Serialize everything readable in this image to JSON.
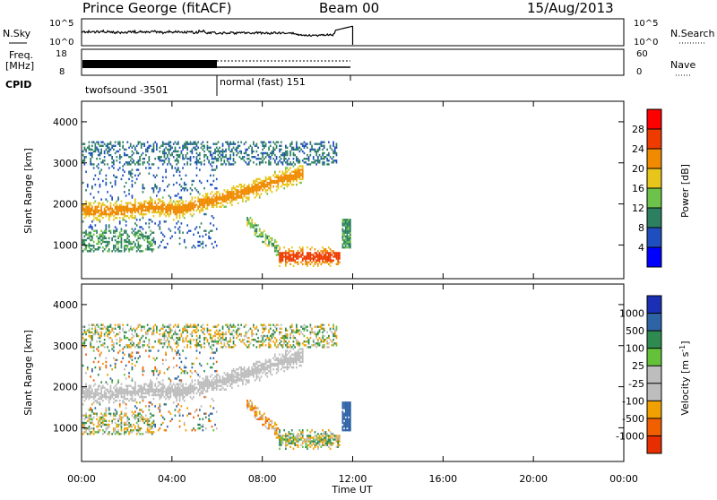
{
  "header": {
    "station": "Prince George (fitACF)",
    "beam": "Beam 00",
    "date": "15/Aug/2013"
  },
  "noise_panel": {
    "left_label": "N.Sky",
    "right_label": "N.Search",
    "left_ticks": [
      "10^5",
      "10^0"
    ],
    "right_ticks": [
      "10^5",
      "10^0"
    ]
  },
  "freq_panel": {
    "left_label_1": "Freq.",
    "left_label_2": "[MHz]",
    "left_ticks": [
      "18",
      "8"
    ],
    "right_label": "Nave",
    "right_ticks": [
      "60",
      "0"
    ]
  },
  "cpid": {
    "label": "CPID",
    "segments": [
      {
        "start_hour": 0,
        "end_hour": 6,
        "text": "twofsound -3501"
      },
      {
        "start_hour": 6,
        "end_hour": 12,
        "text": "normal (fast) 151"
      }
    ]
  },
  "chart_data": [
    {
      "type": "heatmap",
      "panel": "power",
      "ylabel": "Slant Range [km]",
      "yticks": [
        "1000",
        "2000",
        "3000",
        "4000"
      ],
      "ylim": [
        180,
        4500
      ],
      "xlim": [
        0,
        24
      ],
      "colorbar_label": "Power [dB]",
      "colorbar_ticks": [
        "4",
        "8",
        "12",
        "16",
        "20",
        "24",
        "28"
      ],
      "colors": [
        "#0000ff",
        "#1f4fbf",
        "#2d7f62",
        "#6cc24a",
        "#e7c51a",
        "#f08a00",
        "#ee3c00",
        "#ff0000"
      ]
    },
    {
      "type": "heatmap",
      "panel": "velocity",
      "ylabel": "Slant Range [km]",
      "yticks": [
        "1000",
        "2000",
        "3000",
        "4000"
      ],
      "ylim": [
        180,
        4500
      ],
      "xlim": [
        0,
        24
      ],
      "colorbar_label": "Velocity [m s",
      "colorbar_label_sup": "-1",
      "colorbar_label_end": "]",
      "colorbar_ticks": [
        "1000",
        "500",
        "100",
        "25",
        "-25",
        "-100",
        "-500",
        "-1000"
      ],
      "colors": [
        "#1a2fb4",
        "#2e63a6",
        "#2f8a52",
        "#63c13a",
        "#bdbdbd",
        "#bdbdbd",
        "#f0a000",
        "#f06000",
        "#e62e00"
      ]
    }
  ],
  "xaxis": {
    "label": "Time UT",
    "ticks": [
      "00:00",
      "04:00",
      "08:00",
      "12:00",
      "16:00",
      "20:00",
      "00:00"
    ]
  }
}
